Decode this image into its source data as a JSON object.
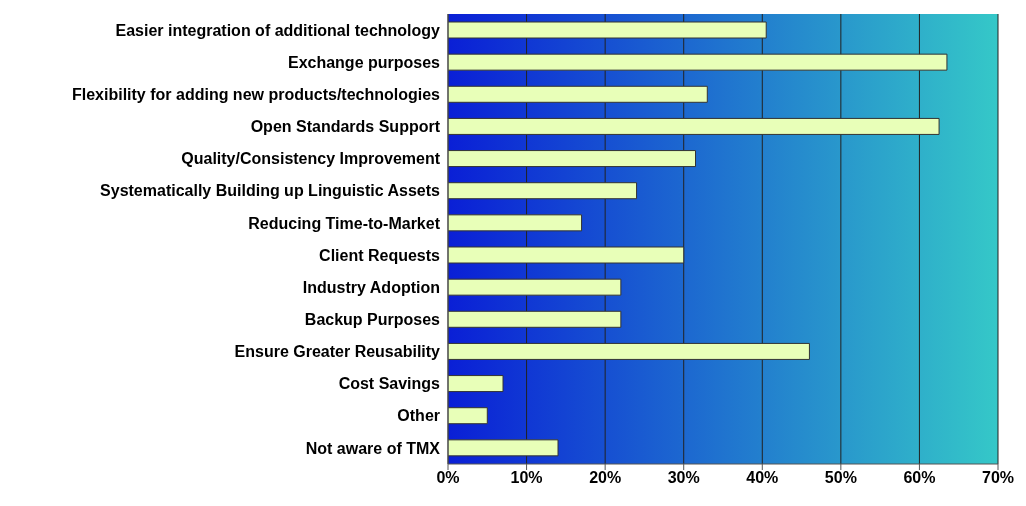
{
  "chart_data": {
    "type": "bar",
    "orientation": "horizontal",
    "categories": [
      "Easier integration of additional technology",
      "Exchange purposes",
      "Flexibility for adding new products/technologies",
      "Open Standards Support",
      "Quality/Consistency Improvement",
      "Systematically Building up Linguistic Assets",
      "Reducing Time-to-Market",
      "Client Requests",
      "Industry Adoption",
      "Backup Purposes",
      "Ensure Greater Reusability",
      "Cost Savings",
      "Other",
      "Not aware of TMX"
    ],
    "values": [
      40.5,
      63.5,
      33,
      62.5,
      31.5,
      24,
      17,
      30,
      22,
      22,
      46,
      7,
      5,
      14
    ],
    "color": "#e8ffb8",
    "xlim": [
      0,
      70
    ],
    "xticks": [
      {
        "value": 0,
        "label": "0%"
      },
      {
        "value": 10,
        "label": "10%"
      },
      {
        "value": 20,
        "label": "20%"
      },
      {
        "value": 30,
        "label": "30%"
      },
      {
        "value": 40,
        "label": "40%"
      },
      {
        "value": 50,
        "label": "50%"
      },
      {
        "value": 60,
        "label": "60%"
      },
      {
        "value": 70,
        "label": "70%"
      }
    ],
    "grid": "x",
    "legend": false
  }
}
